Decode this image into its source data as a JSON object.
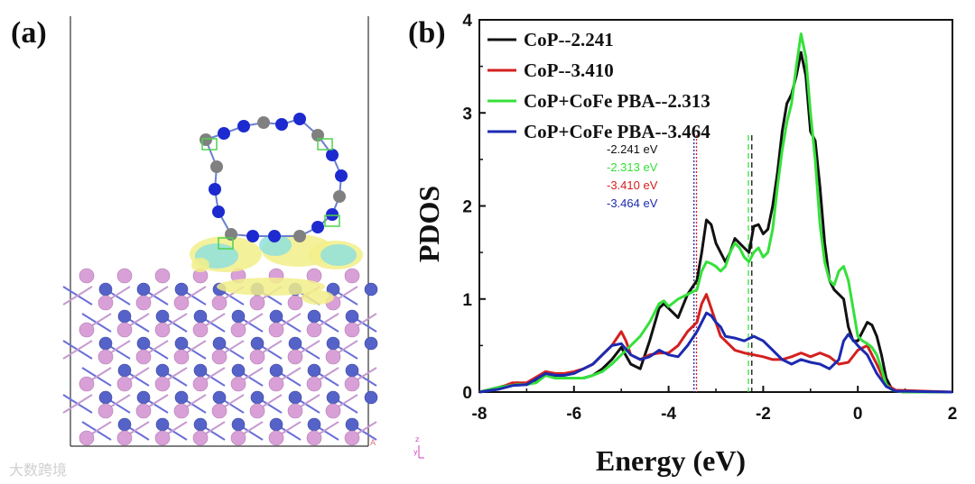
{
  "panel_a_label": "(a)",
  "panel_b_label": "(b)",
  "axes_glyph": {
    "z": "z",
    "y": "y",
    "x": "x",
    "a": "A"
  },
  "watermark": "大数跨境",
  "colors": {
    "black": "#111111",
    "red": "#d42020",
    "green": "#35e03a",
    "blue": "#1c2ab0"
  },
  "chart_data": {
    "type": "line",
    "xlabel": "Energy (eV)",
    "ylabel": "PDOS",
    "xlim": [
      -8,
      2
    ],
    "ylim": [
      0,
      4
    ],
    "xticks": [
      -8,
      -6,
      -4,
      -2,
      0,
      2
    ],
    "yticks": [
      0,
      1,
      2,
      3,
      4
    ],
    "legend_position": "top-left",
    "series": [
      {
        "name": "CoP--2.241",
        "color": "#111111",
        "x": [
          -8,
          -7.6,
          -7.2,
          -7.0,
          -6.8,
          -6.6,
          -6.4,
          -6.2,
          -6.0,
          -5.8,
          -5.6,
          -5.4,
          -5.2,
          -5.0,
          -4.8,
          -4.6,
          -4.4,
          -4.2,
          -4.1,
          -4.0,
          -3.8,
          -3.6,
          -3.4,
          -3.3,
          -3.2,
          -3.1,
          -3.0,
          -2.9,
          -2.8,
          -2.7,
          -2.6,
          -2.5,
          -2.4,
          -2.3,
          -2.2,
          -2.1,
          -2.0,
          -1.9,
          -1.8,
          -1.7,
          -1.6,
          -1.5,
          -1.4,
          -1.3,
          -1.2,
          -1.1,
          -1.0,
          -0.9,
          -0.8,
          -0.7,
          -0.6,
          -0.5,
          -0.4,
          -0.3,
          -0.2,
          -0.1,
          0.0,
          0.1,
          0.2,
          0.3,
          0.4,
          0.5,
          0.6,
          0.7,
          0.8,
          1.0,
          2.0
        ],
        "y": [
          0,
          0.05,
          0.1,
          0.08,
          0.12,
          0.2,
          0.18,
          0.15,
          0.15,
          0.15,
          0.18,
          0.25,
          0.35,
          0.48,
          0.3,
          0.25,
          0.55,
          0.9,
          0.95,
          0.9,
          0.8,
          1.05,
          1.2,
          1.5,
          1.85,
          1.8,
          1.6,
          1.5,
          1.4,
          1.5,
          1.65,
          1.6,
          1.55,
          1.5,
          1.78,
          1.8,
          1.7,
          1.75,
          2.0,
          2.35,
          2.8,
          3.1,
          3.2,
          3.4,
          3.65,
          3.4,
          2.8,
          2.7,
          2.2,
          1.6,
          1.2,
          1.1,
          1.05,
          1.0,
          0.7,
          0.55,
          0.55,
          0.65,
          0.75,
          0.72,
          0.6,
          0.4,
          0.15,
          0.05,
          0.01,
          0,
          0
        ]
      },
      {
        "name": "CoP--3.410",
        "color": "#d42020",
        "x": [
          -8,
          -7.6,
          -7.3,
          -7.0,
          -6.6,
          -6.4,
          -6.2,
          -6.0,
          -5.8,
          -5.6,
          -5.4,
          -5.2,
          -5.0,
          -4.9,
          -4.8,
          -4.6,
          -4.4,
          -4.2,
          -4.0,
          -3.8,
          -3.6,
          -3.4,
          -3.3,
          -3.2,
          -3.1,
          -3.0,
          -2.9,
          -2.8,
          -2.6,
          -2.4,
          -2.2,
          -2.0,
          -1.8,
          -1.6,
          -1.4,
          -1.2,
          -1.0,
          -0.8,
          -0.6,
          -0.4,
          -0.2,
          0.0,
          0.2,
          0.3,
          0.4,
          0.6,
          0.8,
          2.0
        ],
        "y": [
          0,
          0.04,
          0.1,
          0.1,
          0.22,
          0.2,
          0.2,
          0.22,
          0.25,
          0.3,
          0.4,
          0.5,
          0.65,
          0.55,
          0.4,
          0.35,
          0.4,
          0.42,
          0.42,
          0.5,
          0.65,
          0.75,
          0.95,
          1.05,
          0.9,
          0.75,
          0.6,
          0.55,
          0.45,
          0.42,
          0.4,
          0.38,
          0.35,
          0.35,
          0.38,
          0.42,
          0.38,
          0.42,
          0.38,
          0.3,
          0.32,
          0.45,
          0.5,
          0.4,
          0.3,
          0.08,
          0.02,
          0
        ]
      },
      {
        "name": "CoP+CoFe PBA--2.313",
        "color": "#35e03a",
        "x": [
          -8,
          -7.6,
          -7.2,
          -7.0,
          -6.8,
          -6.6,
          -6.4,
          -6.2,
          -6.0,
          -5.8,
          -5.6,
          -5.4,
          -5.2,
          -5.0,
          -4.8,
          -4.6,
          -4.4,
          -4.2,
          -4.1,
          -4.0,
          -3.8,
          -3.6,
          -3.4,
          -3.3,
          -3.2,
          -3.1,
          -3.0,
          -2.9,
          -2.8,
          -2.7,
          -2.6,
          -2.5,
          -2.4,
          -2.3,
          -2.2,
          -2.1,
          -2.0,
          -1.9,
          -1.8,
          -1.7,
          -1.6,
          -1.5,
          -1.4,
          -1.3,
          -1.2,
          -1.1,
          -1.0,
          -0.9,
          -0.8,
          -0.7,
          -0.6,
          -0.5,
          -0.4,
          -0.3,
          -0.2,
          -0.1,
          0.0,
          0.1,
          0.2,
          0.3,
          0.4,
          0.5,
          0.6,
          0.7,
          0.8,
          1.0,
          2.0
        ],
        "y": [
          0,
          0.05,
          0.08,
          0.08,
          0.1,
          0.18,
          0.15,
          0.15,
          0.15,
          0.15,
          0.18,
          0.22,
          0.3,
          0.4,
          0.5,
          0.6,
          0.75,
          0.95,
          0.98,
          0.92,
          1.0,
          1.05,
          1.1,
          1.3,
          1.4,
          1.38,
          1.35,
          1.3,
          1.35,
          1.5,
          1.6,
          1.55,
          1.45,
          1.4,
          1.5,
          1.55,
          1.45,
          1.5,
          1.75,
          2.2,
          2.6,
          2.9,
          3.1,
          3.5,
          3.85,
          3.6,
          3.0,
          2.5,
          1.8,
          1.4,
          1.2,
          1.15,
          1.3,
          1.35,
          1.2,
          0.9,
          0.6,
          0.55,
          0.52,
          0.48,
          0.4,
          0.25,
          0.08,
          0.03,
          0.01,
          0,
          0
        ]
      },
      {
        "name": "CoP+CoFe PBA--3.464",
        "color": "#1c2ab0",
        "x": [
          -8,
          -7.6,
          -7.3,
          -7.0,
          -6.6,
          -6.4,
          -6.2,
          -6.0,
          -5.8,
          -5.6,
          -5.4,
          -5.2,
          -5.0,
          -4.8,
          -4.6,
          -4.4,
          -4.2,
          -4.0,
          -3.8,
          -3.6,
          -3.4,
          -3.3,
          -3.2,
          -3.1,
          -3.0,
          -2.9,
          -2.8,
          -2.6,
          -2.4,
          -2.2,
          -2.0,
          -1.8,
          -1.6,
          -1.4,
          -1.2,
          -1.0,
          -0.8,
          -0.6,
          -0.4,
          -0.3,
          -0.2,
          0.0,
          0.2,
          0.3,
          0.4,
          0.6,
          0.8,
          2.0
        ],
        "y": [
          0,
          0.03,
          0.07,
          0.08,
          0.2,
          0.18,
          0.18,
          0.2,
          0.25,
          0.3,
          0.4,
          0.5,
          0.52,
          0.4,
          0.35,
          0.38,
          0.45,
          0.4,
          0.38,
          0.5,
          0.65,
          0.75,
          0.85,
          0.82,
          0.75,
          0.7,
          0.6,
          0.58,
          0.55,
          0.6,
          0.55,
          0.45,
          0.35,
          0.3,
          0.35,
          0.32,
          0.3,
          0.25,
          0.35,
          0.55,
          0.62,
          0.5,
          0.4,
          0.3,
          0.2,
          0.06,
          0.01,
          0
        ]
      }
    ],
    "vlines": [
      {
        "x": -3.41,
        "color": "#d42020",
        "style": "dotted"
      },
      {
        "x": -3.464,
        "color": "#1c2ab0",
        "style": "dotted"
      },
      {
        "x": -2.241,
        "color": "#111111",
        "style": "dashed"
      },
      {
        "x": -2.313,
        "color": "#35e03a",
        "style": "dashed"
      }
    ],
    "annotations": [
      {
        "text": "-2.241 eV",
        "color": "#111111"
      },
      {
        "text": "-2.313 eV",
        "color": "#35e03a"
      },
      {
        "text": "-3.410 eV",
        "color": "#d42020"
      },
      {
        "text": "-3.464 eV",
        "color": "#1c2ab0"
      }
    ]
  }
}
